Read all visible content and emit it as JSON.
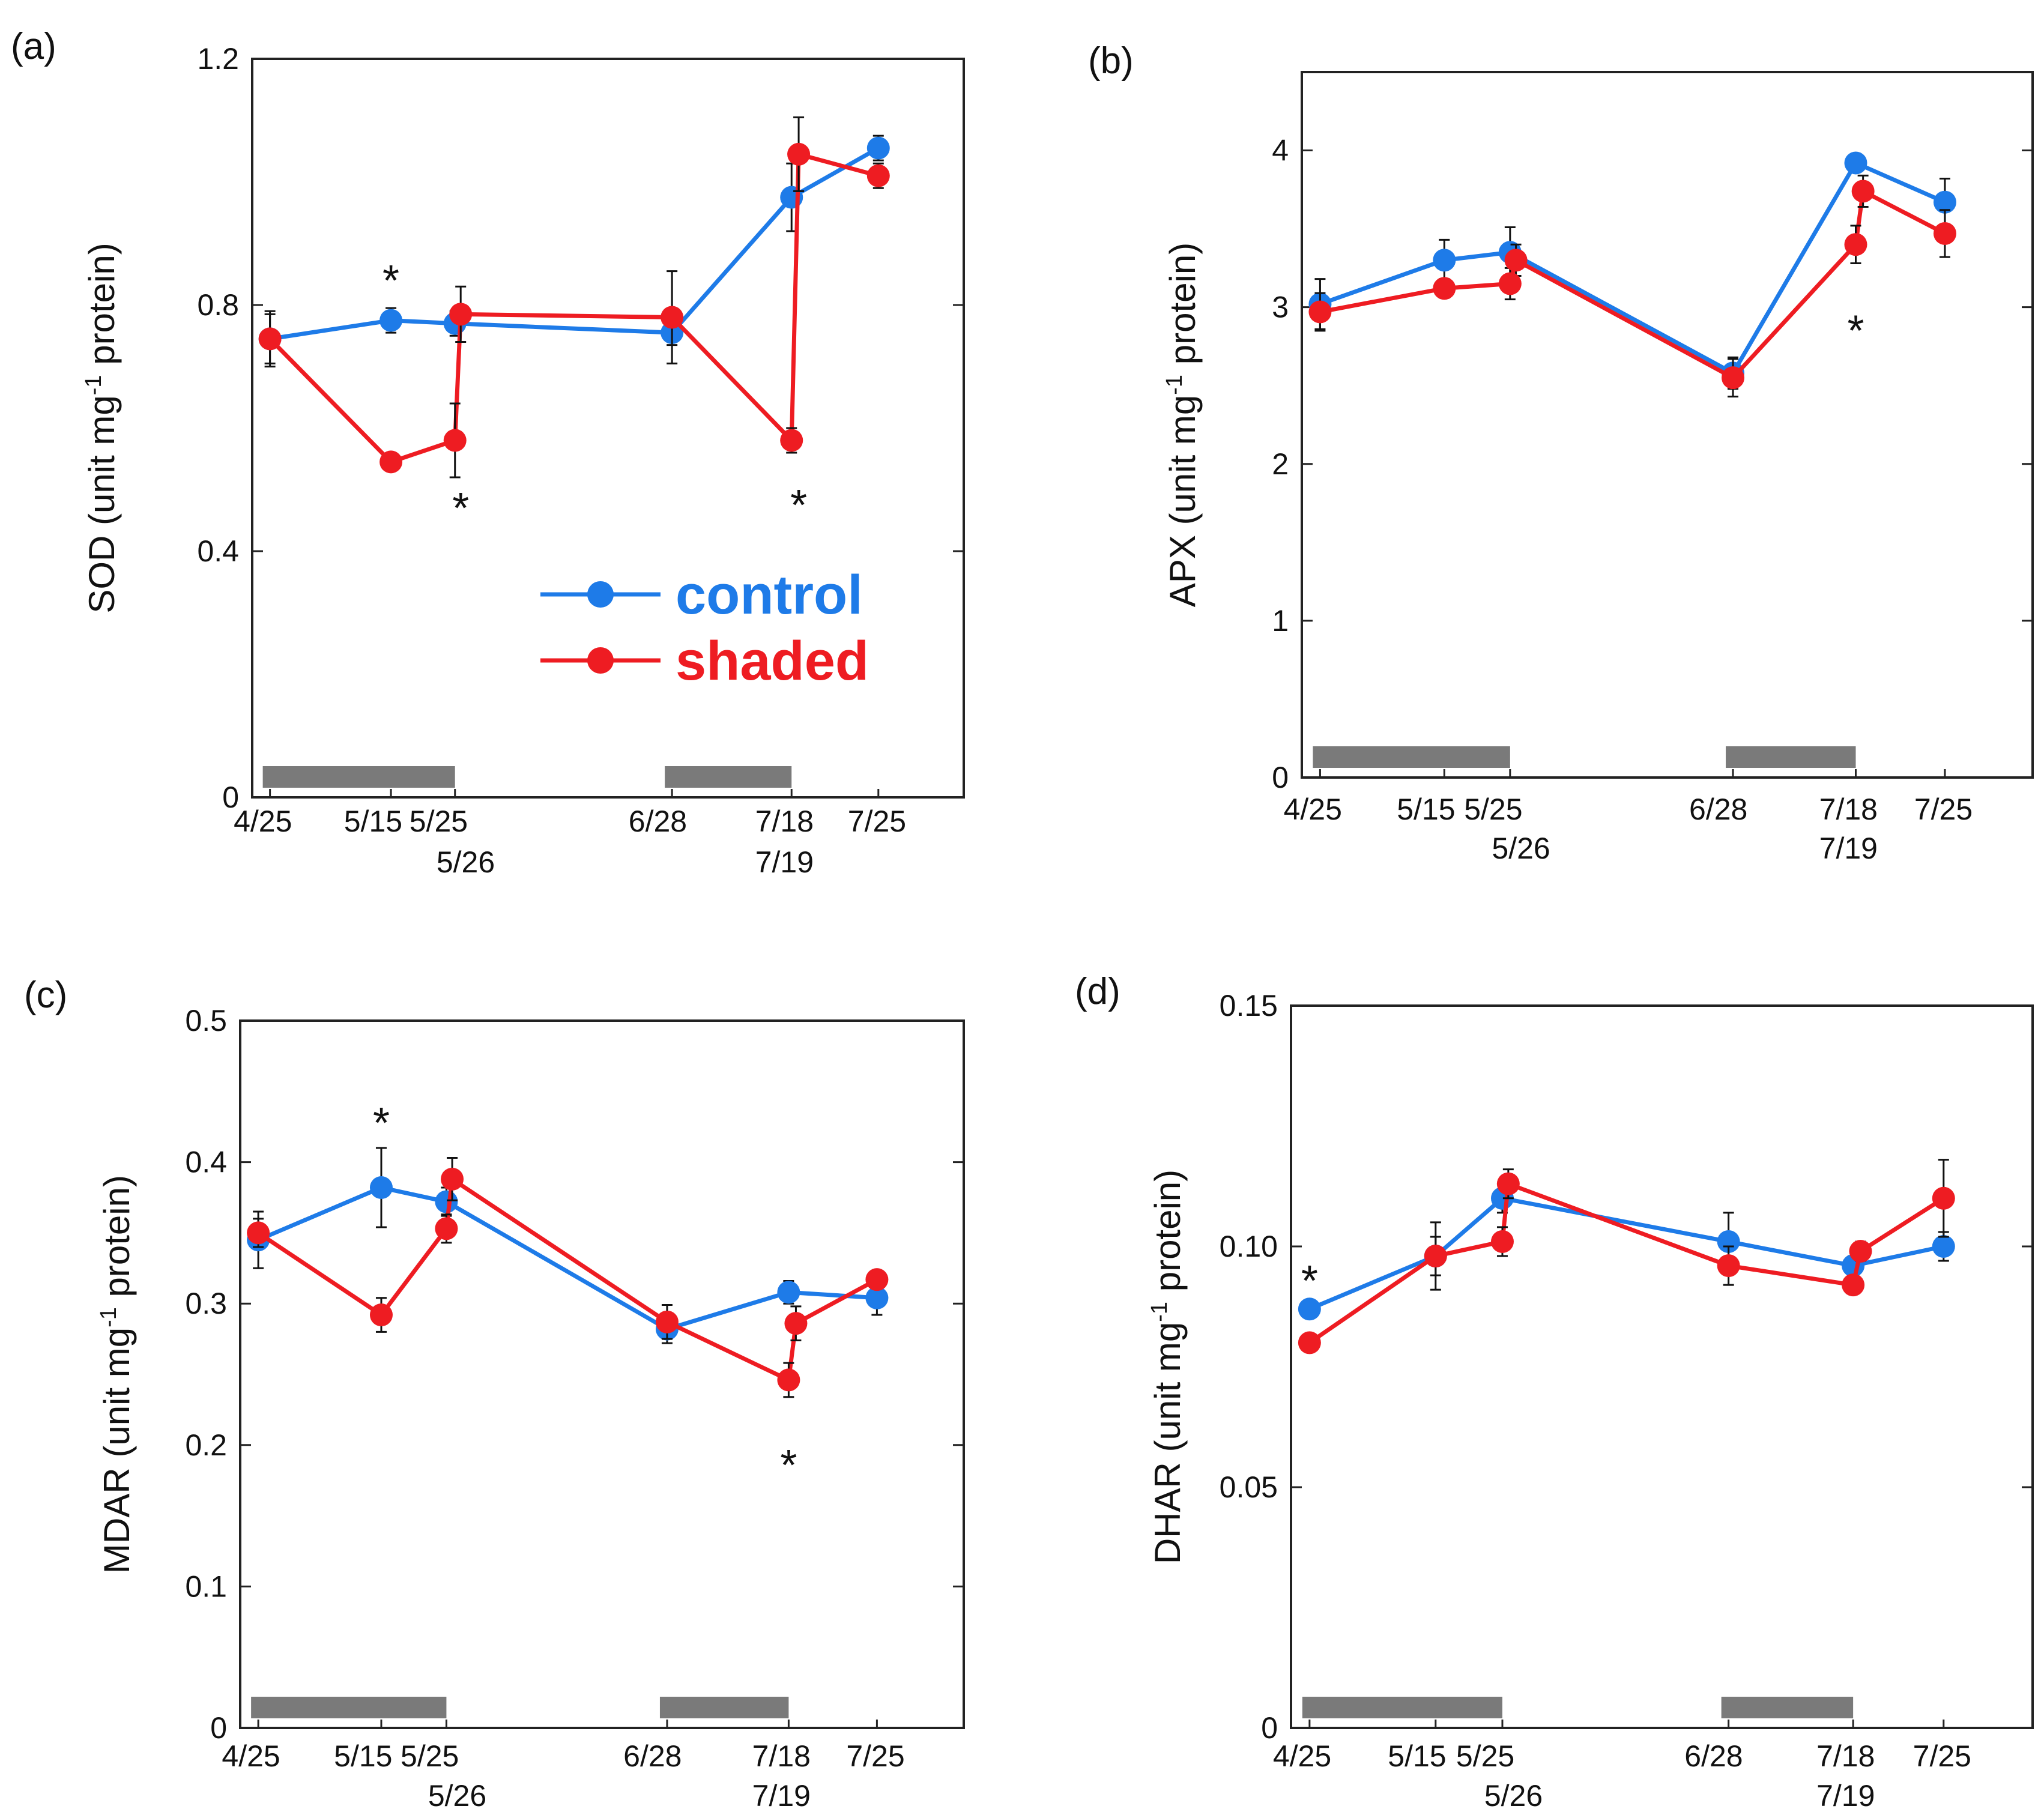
{
  "colors": {
    "control": "#1e7be8",
    "shaded": "#ee1c22",
    "bar": "#7a7a7a",
    "axis": "#222222"
  },
  "x_ticks": [
    {
      "key": "0425",
      "label": "4/25"
    },
    {
      "key": "0515",
      "label": "5/15"
    },
    {
      "key": "0525",
      "label": "5/25"
    },
    {
      "key": "0526",
      "label": "5/26"
    },
    {
      "key": "0628",
      "label": "6/28"
    },
    {
      "key": "0718",
      "label": "7/18"
    },
    {
      "key": "0719",
      "label": "7/19"
    },
    {
      "key": "0725",
      "label": "7/25"
    }
  ],
  "legend": {
    "control": "control",
    "shaded": "shaded"
  },
  "chart_data": [
    {
      "id": "a",
      "panel_label": "(a)",
      "type": "line",
      "ylabel": "SOD (unit mg⁻¹ protein)",
      "ylabel_parts": {
        "pre": "SOD (unit mg",
        "sup": "-1",
        "post": " protein)"
      },
      "ylim": [
        0,
        1.2
      ],
      "yticks": [
        0,
        0.4,
        0.8,
        1.2
      ],
      "ytick_labels": [
        "0",
        "0.4",
        "0.8",
        "1.2"
      ],
      "legend": true,
      "shading_periods": [
        [
          "4/25",
          "5/25"
        ],
        [
          "6/28",
          "7/18"
        ]
      ],
      "series": [
        {
          "name": "control",
          "points": [
            {
              "x": "4/25",
              "y": 0.745,
              "err": 0.045
            },
            {
              "x": "5/15",
              "y": 0.775,
              "err": 0.02
            },
            {
              "x": "5/25",
              "y": 0.77,
              "err": 0.02
            },
            {
              "x": "6/28",
              "y": 0.755,
              "err": 0.02
            },
            {
              "x": "7/18",
              "y": 0.975,
              "err": 0.055
            },
            {
              "x": "7/25",
              "y": 1.055,
              "err": 0.02
            }
          ]
        },
        {
          "name": "shaded",
          "points": [
            {
              "x": "4/25",
              "y": 0.745,
              "err": 0.04
            },
            {
              "x": "5/15",
              "y": 0.545,
              "err": 0.01
            },
            {
              "x": "5/25",
              "y": 0.58,
              "err": 0.06
            },
            {
              "x": "5/26",
              "y": 0.785,
              "err": 0.045
            },
            {
              "x": "6/28",
              "y": 0.78,
              "err": 0.075
            },
            {
              "x": "7/18",
              "y": 0.58,
              "err": 0.02
            },
            {
              "x": "7/19",
              "y": 1.045,
              "err": 0.06
            },
            {
              "x": "7/25",
              "y": 1.01,
              "err": 0.02
            }
          ]
        }
      ],
      "annotations": [
        {
          "text": "*",
          "x": "5/15",
          "y": 0.845
        },
        {
          "text": "*",
          "x": "5/26",
          "y": 0.475
        },
        {
          "text": "*",
          "x": "7/19",
          "y": 0.48
        }
      ]
    },
    {
      "id": "b",
      "panel_label": "(b)",
      "type": "line",
      "ylabel": "APX (unit mg⁻¹ protein)",
      "ylabel_parts": {
        "pre": "APX (unit mg",
        "sup": "-1",
        "post": " protein)"
      },
      "ylim": [
        0,
        4.5
      ],
      "yticks": [
        0,
        1,
        2,
        3,
        4
      ],
      "ytick_labels": [
        "0",
        "1",
        "2",
        "3",
        "4"
      ],
      "legend": false,
      "shading_periods": [
        [
          "4/25",
          "5/25"
        ],
        [
          "6/28",
          "7/18"
        ]
      ],
      "series": [
        {
          "name": "control",
          "points": [
            {
              "x": "4/25",
              "y": 3.02,
              "err": 0.16
            },
            {
              "x": "5/15",
              "y": 3.3,
              "err": 0.13
            },
            {
              "x": "5/25",
              "y": 3.35,
              "err": 0.16
            },
            {
              "x": "6/28",
              "y": 2.58,
              "err": 0.1
            },
            {
              "x": "7/18",
              "y": 3.92,
              "err": 0.05
            },
            {
              "x": "7/25",
              "y": 3.67,
              "err": 0.15
            }
          ]
        },
        {
          "name": "shaded",
          "points": [
            {
              "x": "4/25",
              "y": 2.97,
              "err": 0.12
            },
            {
              "x": "5/15",
              "y": 3.12,
              "err": 0.06
            },
            {
              "x": "5/25",
              "y": 3.15,
              "err": 0.1
            },
            {
              "x": "5/26",
              "y": 3.3,
              "err": 0.1
            },
            {
              "x": "6/28",
              "y": 2.55,
              "err": 0.12
            },
            {
              "x": "7/18",
              "y": 3.4,
              "err": 0.12
            },
            {
              "x": "7/19",
              "y": 3.74,
              "err": 0.1
            },
            {
              "x": "7/25",
              "y": 3.47,
              "err": 0.15
            }
          ]
        }
      ],
      "annotations": [
        {
          "text": "*",
          "x": "7/18",
          "y": 2.87
        }
      ]
    },
    {
      "id": "c",
      "panel_label": "(c)",
      "type": "line",
      "ylabel": "MDAR (unit mg⁻¹ protein)",
      "ylabel_parts": {
        "pre": "MDAR (unit mg",
        "sup": "-1",
        "post": " protein)"
      },
      "ylim": [
        0,
        0.5
      ],
      "yticks": [
        0,
        0.1,
        0.2,
        0.3,
        0.4,
        0.5
      ],
      "ytick_labels": [
        "0",
        "0.1",
        "0.2",
        "0.3",
        "0.4",
        "0.5"
      ],
      "legend": false,
      "shading_periods": [
        [
          "4/25",
          "5/25"
        ],
        [
          "6/28",
          "7/18"
        ]
      ],
      "series": [
        {
          "name": "control",
          "points": [
            {
              "x": "4/25",
              "y": 0.345,
              "err": 0.02
            },
            {
              "x": "5/15",
              "y": 0.382,
              "err": 0.028
            },
            {
              "x": "5/25",
              "y": 0.372,
              "err": 0.01
            },
            {
              "x": "6/28",
              "y": 0.282,
              "err": 0.01
            },
            {
              "x": "7/18",
              "y": 0.308,
              "err": 0.008
            },
            {
              "x": "7/25",
              "y": 0.304,
              "err": 0.012
            }
          ]
        },
        {
          "name": "shaded",
          "points": [
            {
              "x": "4/25",
              "y": 0.35,
              "err": 0.01
            },
            {
              "x": "5/15",
              "y": 0.292,
              "err": 0.012
            },
            {
              "x": "5/25",
              "y": 0.353,
              "err": 0.01
            },
            {
              "x": "5/26",
              "y": 0.388,
              "err": 0.015
            },
            {
              "x": "6/28",
              "y": 0.287,
              "err": 0.012
            },
            {
              "x": "7/18",
              "y": 0.246,
              "err": 0.012
            },
            {
              "x": "7/19",
              "y": 0.286,
              "err": 0.012
            },
            {
              "x": "7/25",
              "y": 0.317,
              "err": 0.005
            }
          ]
        }
      ],
      "annotations": [
        {
          "text": "*",
          "x": "5/15",
          "y": 0.43
        },
        {
          "text": "*",
          "x": "7/18",
          "y": 0.188
        }
      ]
    },
    {
      "id": "d",
      "panel_label": "(d)",
      "type": "line",
      "ylabel": "DHAR (unit mg⁻¹ protein)",
      "ylabel_parts": {
        "pre": "DHAR (unit mg",
        "sup": "-1",
        "post": " protein)"
      },
      "ylim": [
        0,
        0.15
      ],
      "yticks": [
        0,
        0.05,
        0.1,
        0.15
      ],
      "ytick_labels": [
        "0",
        "0.05",
        "0.10",
        "0.15"
      ],
      "legend": false,
      "shading_periods": [
        [
          "4/25",
          "5/25"
        ],
        [
          "6/28",
          "7/18"
        ]
      ],
      "series": [
        {
          "name": "control",
          "points": [
            {
              "x": "4/25",
              "y": 0.087,
              "err": 0.001
            },
            {
              "x": "5/15",
              "y": 0.098,
              "err": 0.007
            },
            {
              "x": "5/25",
              "y": 0.11,
              "err": 0.003
            },
            {
              "x": "6/28",
              "y": 0.101,
              "err": 0.006
            },
            {
              "x": "7/18",
              "y": 0.096,
              "err": 0.002
            },
            {
              "x": "7/25",
              "y": 0.1,
              "err": 0.003
            }
          ]
        },
        {
          "name": "shaded",
          "points": [
            {
              "x": "4/25",
              "y": 0.08,
              "err": 0.001
            },
            {
              "x": "5/15",
              "y": 0.098,
              "err": 0.004
            },
            {
              "x": "5/25",
              "y": 0.101,
              "err": 0.003
            },
            {
              "x": "5/26",
              "y": 0.113,
              "err": 0.003
            },
            {
              "x": "6/28",
              "y": 0.096,
              "err": 0.004
            },
            {
              "x": "7/18",
              "y": 0.092,
              "err": 0.001
            },
            {
              "x": "7/19",
              "y": 0.099,
              "err": 0.002
            },
            {
              "x": "7/25",
              "y": 0.11,
              "err": 0.008
            }
          ]
        }
      ],
      "annotations": [
        {
          "text": "*",
          "x": "4/25",
          "y": 0.0935
        }
      ]
    }
  ]
}
